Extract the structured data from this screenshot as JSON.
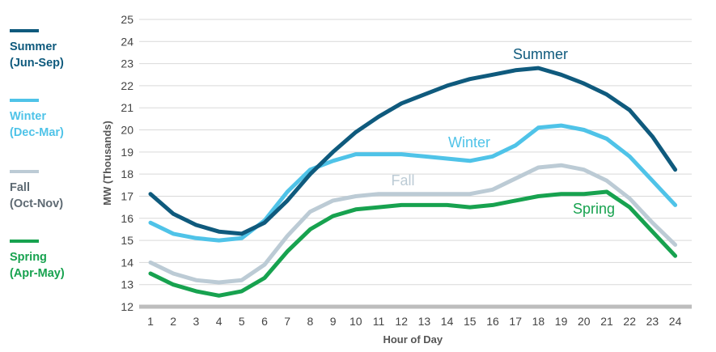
{
  "chart_data": {
    "type": "line",
    "title": "",
    "xlabel": "Hour of Day",
    "ylabel": "MW (Thousands)",
    "x": [
      1,
      2,
      3,
      4,
      5,
      6,
      7,
      8,
      9,
      10,
      11,
      12,
      13,
      14,
      15,
      16,
      17,
      18,
      19,
      20,
      21,
      22,
      23,
      24
    ],
    "ylim": [
      12,
      25
    ],
    "yticks": [
      12,
      13,
      14,
      15,
      16,
      17,
      18,
      19,
      20,
      21,
      22,
      23,
      24,
      25
    ],
    "grid": "horizontal",
    "legend_position": "left",
    "series": [
      {
        "name": "Summer",
        "legend": [
          "Summer",
          "(Jun-Sep)"
        ],
        "color": "#0f5a7d",
        "values": [
          17.1,
          16.2,
          15.7,
          15.4,
          15.3,
          15.8,
          16.8,
          18.0,
          19.0,
          19.9,
          20.6,
          21.2,
          21.6,
          22.0,
          22.3,
          22.5,
          22.7,
          22.8,
          22.5,
          22.1,
          21.6,
          20.9,
          19.7,
          18.2
        ]
      },
      {
        "name": "Winter",
        "legend": [
          "Winter",
          "(Dec-Mar)"
        ],
        "color": "#4fc3e8",
        "values": [
          15.8,
          15.3,
          15.1,
          15.0,
          15.1,
          15.9,
          17.2,
          18.2,
          18.6,
          18.9,
          18.9,
          18.9,
          18.8,
          18.7,
          18.6,
          18.8,
          19.3,
          20.1,
          20.2,
          20.0,
          19.6,
          18.8,
          17.7,
          16.6
        ]
      },
      {
        "name": "Fall",
        "legend": [
          "Fall",
          "(Oct-Nov)"
        ],
        "color": "#bccbd5",
        "values": [
          14.0,
          13.5,
          13.2,
          13.1,
          13.2,
          13.9,
          15.2,
          16.3,
          16.8,
          17.0,
          17.1,
          17.1,
          17.1,
          17.1,
          17.1,
          17.3,
          17.8,
          18.3,
          18.4,
          18.2,
          17.7,
          16.9,
          15.8,
          14.8
        ]
      },
      {
        "name": "Spring",
        "legend": [
          "Spring",
          "(Apr-May)"
        ],
        "color": "#17a24f",
        "values": [
          13.5,
          13.0,
          12.7,
          12.5,
          12.7,
          13.3,
          14.5,
          15.5,
          16.1,
          16.4,
          16.5,
          16.6,
          16.6,
          16.6,
          16.5,
          16.6,
          16.8,
          17.0,
          17.1,
          17.1,
          17.2,
          16.5,
          15.4,
          14.3
        ]
      }
    ]
  }
}
